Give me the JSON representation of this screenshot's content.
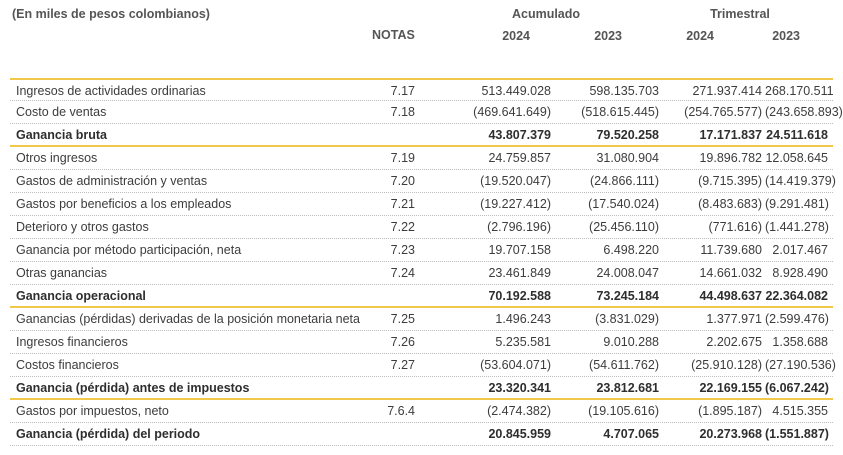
{
  "header": {
    "unit_note": "(En miles de pesos colombianos)",
    "notes_label": "NOTAS",
    "group_accumulated": "Acumulado",
    "group_quarterly": "Trimestral",
    "years": [
      "2024",
      "2023",
      "2024",
      "2023"
    ]
  },
  "rows": [
    {
      "label": "Ingresos de actividades ordinarias",
      "note": "7.17",
      "values": [
        "513.449.028",
        "598.135.703",
        "271.937.414",
        "268.170.511"
      ],
      "bold": false
    },
    {
      "label": "Costo de ventas",
      "note": "7.18",
      "values": [
        "(469.641.649)",
        "(518.615.445)",
        "(254.765.577)",
        "(243.658.893)"
      ],
      "bold": false
    },
    {
      "label": "Ganancia bruta",
      "note": "",
      "values": [
        "43.807.379",
        "79.520.258",
        "17.171.837",
        "24.511.618"
      ],
      "bold": true
    },
    {
      "label": "Otros ingresos",
      "note": "7.19",
      "values": [
        "24.759.857",
        "31.080.904",
        "19.896.782",
        "12.058.645"
      ],
      "bold": false
    },
    {
      "label": "Gastos de administración y ventas",
      "note": "7.20",
      "values": [
        "(19.520.047)",
        "(24.866.111)",
        "(9.715.395)",
        "(14.419.379)"
      ],
      "bold": false
    },
    {
      "label": "Gastos por beneficios a los empleados",
      "note": "7.21",
      "values": [
        "(19.227.412)",
        "(17.540.024)",
        "(8.483.683)",
        "(9.291.481)"
      ],
      "bold": false
    },
    {
      "label": "Deterioro y otros gastos",
      "note": "7.22",
      "values": [
        "(2.796.196)",
        "(25.456.110)",
        "(771.616)",
        "(1.441.278)"
      ],
      "bold": false
    },
    {
      "label": "Ganancia por método participación, neta",
      "note": "7.23",
      "values": [
        "19.707.158",
        "6.498.220",
        "11.739.680",
        "2.017.467"
      ],
      "bold": false
    },
    {
      "label": "Otras ganancias",
      "note": "7.24",
      "values": [
        "23.461.849",
        "24.008.047",
        "14.661.032",
        "8.928.490"
      ],
      "bold": false
    },
    {
      "label": "Ganancia operacional",
      "note": "",
      "values": [
        "70.192.588",
        "73.245.184",
        "44.498.637",
        "22.364.082"
      ],
      "bold": true
    },
    {
      "label": "Ganancias (pérdidas) derivadas de la posición monetaria neta",
      "note": "7.25",
      "values": [
        "1.496.243",
        "(3.831.029)",
        "1.377.971",
        "(2.599.476)"
      ],
      "bold": false
    },
    {
      "label": "Ingresos financieros",
      "note": "7.26",
      "values": [
        "5.235.581",
        "9.010.288",
        "2.202.675",
        "1.358.688"
      ],
      "bold": false
    },
    {
      "label": "Costos financieros",
      "note": "7.27",
      "values": [
        "(53.604.071)",
        "(54.611.762)",
        "(25.910.128)",
        "(27.190.536)"
      ],
      "bold": false
    },
    {
      "label": "Ganancia (pérdida) antes de impuestos",
      "note": "",
      "values": [
        "23.320.341",
        "23.812.681",
        "22.169.155",
        "(6.067.242)"
      ],
      "bold": true
    },
    {
      "label": "Gastos por impuestos, neto",
      "note": "7.6.4",
      "values": [
        "(2.474.382)",
        "(19.105.616)",
        "(1.895.187)",
        "4.515.355"
      ],
      "bold": false
    },
    {
      "label": "Ganancia (pérdida) del periodo",
      "note": "",
      "values": [
        "20.845.959",
        "4.707.065",
        "20.273.968",
        "(1.551.887)"
      ],
      "bold": true
    }
  ],
  "colors": {
    "accent_rule": "#f0c94a",
    "text": "#3c3c3c"
  }
}
